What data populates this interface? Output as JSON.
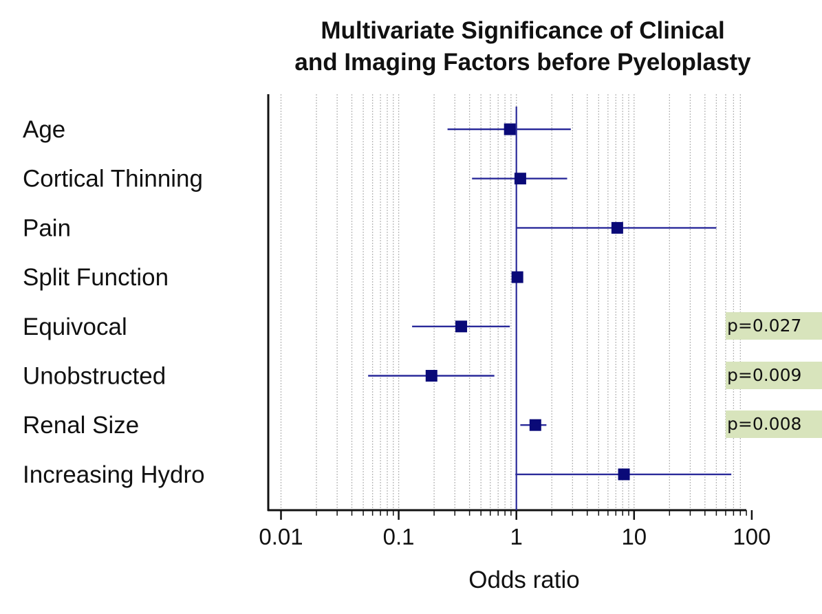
{
  "chart_data": {
    "type": "forest",
    "title": [
      "Multivariate Significance of Clinical",
      "and Imaging Factors before Pyeloplasty"
    ],
    "xlabel": "Odds ratio",
    "x_scale": "log",
    "xlim": [
      0.008,
      120
    ],
    "x_ticks": [
      0.01,
      0.1,
      1,
      10,
      100
    ],
    "x_tick_labels": [
      "0.01",
      "0.1",
      "1",
      "10",
      "100"
    ],
    "reference_line": 1,
    "grid": "vertical minor log gridlines",
    "colors": {
      "marker": "#0a0a78",
      "ci_line": "#2a2a9a",
      "grid": "#b8b8b8",
      "badge": "#d8e4bc"
    },
    "rows": [
      {
        "label": "Age",
        "or": 0.88,
        "lower": 0.26,
        "upper": 2.9,
        "p": ""
      },
      {
        "label": "Cortical Thinning",
        "or": 1.08,
        "lower": 0.42,
        "upper": 2.7,
        "p": ""
      },
      {
        "label": "Pain",
        "or": 7.2,
        "lower": 1.0,
        "upper": 50,
        "p": ""
      },
      {
        "label": "Split Function",
        "or": 1.02,
        "lower": 0.97,
        "upper": 1.07,
        "p": ""
      },
      {
        "label": "Equivocal",
        "or": 0.34,
        "lower": 0.13,
        "upper": 0.88,
        "p": "p=0.027"
      },
      {
        "label": "Unobstructed",
        "or": 0.19,
        "lower": 0.055,
        "upper": 0.65,
        "p": "p=0.009"
      },
      {
        "label": "Renal Size",
        "or": 1.45,
        "lower": 1.08,
        "upper": 1.8,
        "p": "p=0.008"
      },
      {
        "label": "Increasing Hydro",
        "or": 8.2,
        "lower": 0.98,
        "upper": 67,
        "p": ""
      }
    ]
  }
}
